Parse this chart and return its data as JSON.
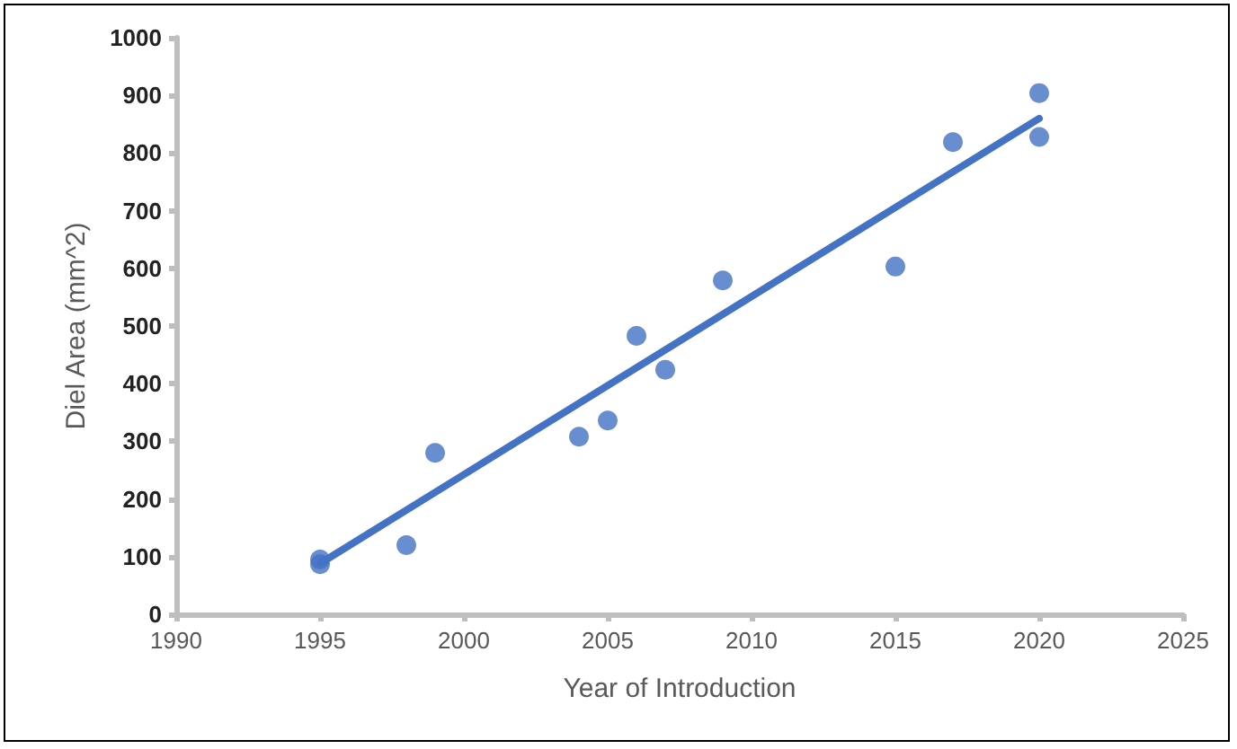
{
  "chart_data": {
    "type": "scatter",
    "xlabel": "Year of Introduction",
    "ylabel": "Diel Area (mm^2)",
    "xlim": [
      1990,
      2025
    ],
    "xticks": [
      1990,
      1995,
      2000,
      2005,
      2010,
      2015,
      2020,
      2025
    ],
    "ylim": [
      0,
      1000
    ],
    "yticks": [
      0,
      100,
      200,
      300,
      400,
      500,
      600,
      700,
      800,
      900,
      1000
    ],
    "grid": false,
    "marker": "circle",
    "series": [
      {
        "color": "#4472c4",
        "x": [
          1995,
          1995,
          1998,
          1999,
          2004,
          2005,
          2006,
          2007,
          2009,
          2015,
          2017,
          2020,
          2020
        ],
        "values": [
          95,
          87,
          120,
          280,
          308,
          336,
          483,
          424,
          579,
          603,
          819,
          904,
          828
        ]
      },
      {
        "type": "line",
        "marker": "none",
        "color": "#4472c4",
        "x": [
          1995,
          2020
        ],
        "values": [
          88,
          860
        ],
        "line_style": "solid"
      }
    ]
  }
}
